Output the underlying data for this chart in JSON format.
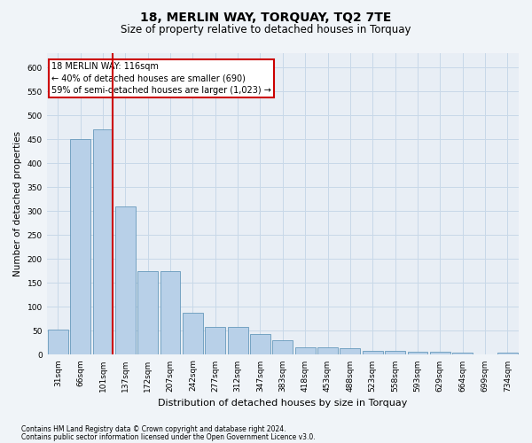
{
  "title": "18, MERLIN WAY, TORQUAY, TQ2 7TE",
  "subtitle": "Size of property relative to detached houses in Torquay",
  "xlabel": "Distribution of detached houses by size in Torquay",
  "ylabel": "Number of detached properties",
  "categories": [
    "31sqm",
    "66sqm",
    "101sqm",
    "137sqm",
    "172sqm",
    "207sqm",
    "242sqm",
    "277sqm",
    "312sqm",
    "347sqm",
    "383sqm",
    "418sqm",
    "453sqm",
    "488sqm",
    "523sqm",
    "558sqm",
    "593sqm",
    "629sqm",
    "664sqm",
    "699sqm",
    "734sqm"
  ],
  "values": [
    52,
    450,
    470,
    310,
    175,
    175,
    87,
    58,
    58,
    43,
    30,
    16,
    15,
    14,
    8,
    8,
    7,
    7,
    5,
    0,
    4
  ],
  "bar_color": "#b8d0e8",
  "bar_edge_color": "#6699bb",
  "grid_color": "#c8d8e8",
  "vline_x": 2.45,
  "vline_color": "#cc0000",
  "annotation_text": "18 MERLIN WAY: 116sqm\n← 40% of detached houses are smaller (690)\n59% of semi-detached houses are larger (1,023) →",
  "annotation_box_facecolor": "#ffffff",
  "annotation_box_edgecolor": "#cc0000",
  "ylim": [
    0,
    630
  ],
  "yticks": [
    0,
    50,
    100,
    150,
    200,
    250,
    300,
    350,
    400,
    450,
    500,
    550,
    600
  ],
  "footer1": "Contains HM Land Registry data © Crown copyright and database right 2024.",
  "footer2": "Contains public sector information licensed under the Open Government Licence v3.0.",
  "bg_color": "#f0f4f8",
  "plot_bg_color": "#e8eef5",
  "title_fontsize": 10,
  "subtitle_fontsize": 8.5,
  "ylabel_fontsize": 7.5,
  "xlabel_fontsize": 8,
  "tick_fontsize": 6.5,
  "annotation_fontsize": 7,
  "footer_fontsize": 5.5
}
